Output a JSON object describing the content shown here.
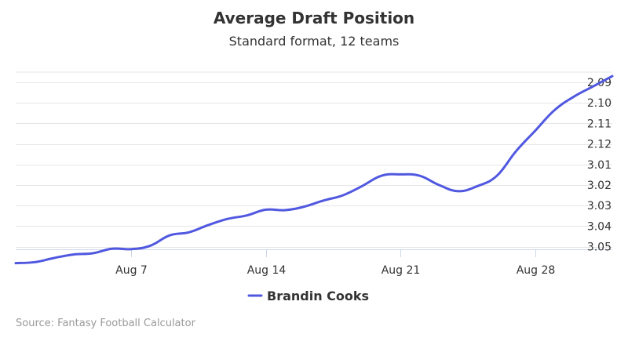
{
  "chart_data": {
    "type": "line",
    "title": "Average Draft Position",
    "subtitle": "Standard format, 12 teams",
    "xlabel": "",
    "ylabel": "",
    "x_tick_labels": [
      "Aug 7",
      "Aug 14",
      "Aug 21",
      "Aug 28"
    ],
    "x_tick_positions": [
      7,
      14,
      21,
      28
    ],
    "y_tick_labels": [
      "2.09",
      "2.10",
      "2.11",
      "2.12",
      "3.01",
      "3.02",
      "3.03",
      "3.04",
      "3.05"
    ],
    "y_axis_reversed": true,
    "ylim": [
      0,
      9
    ],
    "xlim": [
      1,
      32
    ],
    "grid": true,
    "legend_position": "bottom-center",
    "series": [
      {
        "name": "Brandin Cooks",
        "color": "#5058e0",
        "x": [
          1,
          2,
          3,
          4,
          5,
          6,
          7,
          8,
          9,
          10,
          11,
          12,
          13,
          14,
          15,
          16,
          17,
          18,
          19,
          20,
          21,
          22,
          23,
          24,
          25,
          26,
          27,
          28,
          29,
          30,
          31,
          32
        ],
        "y": [
          8.8,
          8.75,
          8.55,
          8.38,
          8.32,
          8.1,
          8.12,
          7.95,
          7.45,
          7.3,
          6.95,
          6.65,
          6.48,
          6.2,
          6.22,
          6.05,
          5.75,
          5.5,
          5.05,
          4.55,
          4.48,
          4.55,
          5.0,
          5.3,
          5.05,
          4.55,
          3.35,
          2.35,
          1.35,
          0.7,
          0.2,
          -0.3
        ]
      }
    ],
    "source": "Source: Fantasy Football Calculator"
  }
}
